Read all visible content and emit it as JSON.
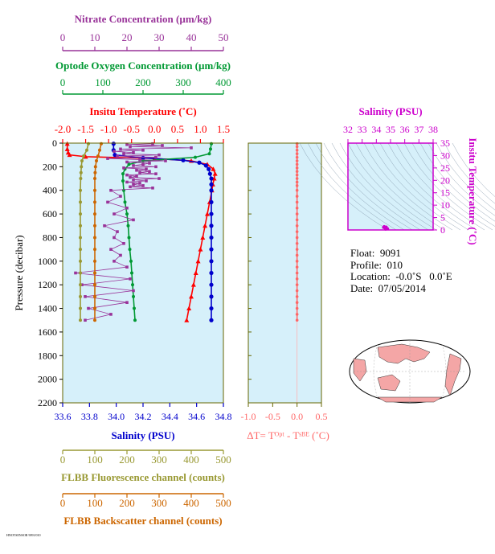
{
  "info": {
    "float": "Float:  9091",
    "profile": "Profile:  010",
    "location": "Location:  -0.0˚S   0.0˚E",
    "date": "Date:  07/05/2014"
  },
  "footer": "HNOTSENSOR 9091/010",
  "colors": {
    "nitrate": "#993399",
    "oxygen": "#009933",
    "temperature": "#ff0000",
    "salinity": "#0000cc",
    "fluorescence": "#999933",
    "backscatter": "#cc6600",
    "deltaT": "#ff6666",
    "panel_bg": "#d6f0fa",
    "ts_axis": "#cc00cc",
    "frame": "#666600"
  },
  "chart_data": [
    {
      "type": "line",
      "title": "",
      "ylabel": "Pressure (decibar)",
      "ylim": [
        2200,
        0
      ],
      "y_ticks": [
        "0",
        "200",
        "400",
        "600",
        "800",
        "1000",
        "1200",
        "1400",
        "1600",
        "1800",
        "2000",
        "2200"
      ],
      "axes": {
        "nitrate": {
          "label": "Nitrate Concentration (µm/kg)",
          "range": [
            0,
            50
          ],
          "ticks": [
            "0",
            "10",
            "20",
            "30",
            "40",
            "50"
          ]
        },
        "oxygen": {
          "label": "Optode Oxygen Concentration (µm/kg)",
          "range": [
            0,
            400
          ],
          "ticks": [
            "0",
            "100",
            "200",
            "300",
            "400"
          ]
        },
        "temperature": {
          "label": "Insitu Temperature (˚C)",
          "range": [
            -2.0,
            1.5
          ],
          "ticks": [
            "-2.0",
            "-1.5",
            "-1.0",
            "-0.5",
            "0.0",
            "0.5",
            "1.0",
            "1.5"
          ]
        },
        "salinity": {
          "label": "Salinity (PSU)",
          "range": [
            33.6,
            34.8
          ],
          "ticks": [
            "33.6",
            "33.8",
            "34.0",
            "34.2",
            "34.4",
            "34.6",
            "34.8"
          ]
        },
        "fluorescence": {
          "label": "FLBB Fluorescence channel (counts)",
          "range": [
            0,
            500
          ],
          "ticks": [
            "0",
            "100",
            "200",
            "300",
            "400",
            "500"
          ]
        },
        "backscatter": {
          "label": "FLBB Backscatter channel (counts)",
          "range": [
            0,
            500
          ],
          "ticks": [
            "0",
            "100",
            "200",
            "300",
            "400",
            "500"
          ]
        }
      },
      "series": [
        {
          "key": "temperature",
          "marker": "triangle",
          "points": [
            [
              -1.9,
              5
            ],
            [
              -1.9,
              50
            ],
            [
              -1.88,
              80
            ],
            [
              -1.85,
              100
            ],
            [
              -1.5,
              115
            ],
            [
              0.0,
              130
            ],
            [
              0.8,
              150
            ],
            [
              1.15,
              180
            ],
            [
              1.28,
              220
            ],
            [
              1.32,
              260
            ],
            [
              1.3,
              300
            ],
            [
              1.27,
              350
            ],
            [
              1.25,
              400
            ],
            [
              1.2,
              500
            ],
            [
              1.15,
              600
            ],
            [
              1.1,
              700
            ],
            [
              1.05,
              800
            ],
            [
              1.0,
              900
            ],
            [
              0.95,
              1000
            ],
            [
              0.9,
              1100
            ],
            [
              0.85,
              1200
            ],
            [
              0.8,
              1300
            ],
            [
              0.75,
              1400
            ],
            [
              0.7,
              1500
            ]
          ]
        },
        {
          "key": "salinity",
          "marker": "circle",
          "points": [
            [
              33.98,
              5
            ],
            [
              33.98,
              60
            ],
            [
              33.99,
              100
            ],
            [
              34.2,
              125
            ],
            [
              34.5,
              145
            ],
            [
              34.62,
              165
            ],
            [
              34.67,
              190
            ],
            [
              34.69,
              220
            ],
            [
              34.7,
              260
            ],
            [
              34.71,
              300
            ],
            [
              34.71,
              350
            ],
            [
              34.71,
              400
            ],
            [
              34.71,
              500
            ],
            [
              34.71,
              600
            ],
            [
              34.71,
              700
            ],
            [
              34.71,
              800
            ],
            [
              34.71,
              900
            ],
            [
              34.71,
              1000
            ],
            [
              34.71,
              1100
            ],
            [
              34.71,
              1200
            ],
            [
              34.71,
              1300
            ],
            [
              34.71,
              1400
            ],
            [
              34.71,
              1500
            ]
          ]
        },
        {
          "key": "oxygen",
          "marker": "circle",
          "points": [
            [
              370,
              5
            ],
            [
              368,
              50
            ],
            [
              365,
              90
            ],
            [
              330,
              120
            ],
            [
              200,
              150
            ],
            [
              165,
              180
            ],
            [
              155,
              220
            ],
            [
              150,
              260
            ],
            [
              150,
              320
            ],
            [
              152,
              400
            ],
            [
              155,
              500
            ],
            [
              160,
              600
            ],
            [
              163,
              700
            ],
            [
              165,
              800
            ],
            [
              167,
              900
            ],
            [
              170,
              1000
            ],
            [
              172,
              1100
            ],
            [
              174,
              1200
            ],
            [
              176,
              1300
            ],
            [
              178,
              1400
            ],
            [
              180,
              1500
            ]
          ]
        },
        {
          "key": "nitrate",
          "marker": "square",
          "points": [
            [
              28,
              5
            ],
            [
              20,
              12
            ],
            [
              31,
              20
            ],
            [
              21,
              30
            ],
            [
              40,
              40
            ],
            [
              18,
              50
            ],
            [
              25,
              60
            ],
            [
              16,
              70
            ],
            [
              22,
              80
            ],
            [
              19,
              90
            ],
            [
              30,
              100
            ],
            [
              17,
              110
            ],
            [
              29,
              120
            ],
            [
              14,
              130
            ],
            [
              24,
              140
            ],
            [
              32,
              150
            ],
            [
              20,
              160
            ],
            [
              27,
              170
            ],
            [
              25,
              180
            ],
            [
              22,
              190
            ],
            [
              29,
              200
            ],
            [
              19,
              210
            ],
            [
              26,
              220
            ],
            [
              23,
              230
            ],
            [
              27,
              240
            ],
            [
              24,
              250
            ],
            [
              29,
              260
            ],
            [
              20,
              270
            ],
            [
              23,
              280
            ],
            [
              21,
              290
            ],
            [
              30,
              300
            ],
            [
              22,
              310
            ],
            [
              26,
              320
            ],
            [
              20,
              330
            ],
            [
              24,
              340
            ],
            [
              22,
              350
            ],
            [
              25,
              360
            ],
            [
              21,
              370
            ],
            [
              28,
              380
            ],
            [
              15,
              400
            ],
            [
              18,
              450
            ],
            [
              14,
              500
            ],
            [
              20,
              550
            ],
            [
              16,
              600
            ],
            [
              22,
              650
            ],
            [
              13,
              700
            ],
            [
              17,
              750
            ],
            [
              16,
              800
            ],
            [
              19,
              850
            ],
            [
              15,
              900
            ],
            [
              18,
              950
            ],
            [
              16,
              1000
            ],
            [
              20,
              1050
            ],
            [
              4,
              1100
            ],
            [
              21,
              1150
            ],
            [
              6,
              1200
            ],
            [
              22,
              1250
            ],
            [
              7,
              1300
            ],
            [
              20,
              1350
            ],
            [
              8,
              1400
            ],
            [
              15,
              1450
            ],
            [
              7,
              1500
            ]
          ]
        },
        {
          "key": "fluorescence",
          "marker": "circle",
          "points": [
            [
              80,
              5
            ],
            [
              75,
              60
            ],
            [
              65,
              110
            ],
            [
              60,
              150
            ],
            [
              58,
              200
            ],
            [
              57,
              250
            ],
            [
              56,
              300
            ],
            [
              55,
              400
            ],
            [
              55,
              500
            ],
            [
              55,
              600
            ],
            [
              55,
              700
            ],
            [
              55,
              800
            ],
            [
              55,
              900
            ],
            [
              55,
              1000
            ],
            [
              55,
              1100
            ],
            [
              55,
              1200
            ],
            [
              55,
              1300
            ],
            [
              55,
              1400
            ],
            [
              55,
              1500
            ]
          ]
        },
        {
          "key": "backscatter",
          "marker": "circle",
          "points": [
            [
              120,
              5
            ],
            [
              115,
              60
            ],
            [
              110,
              110
            ],
            [
              105,
              150
            ],
            [
              102,
              200
            ],
            [
              101,
              250
            ],
            [
              100,
              300
            ],
            [
              100,
              400
            ],
            [
              100,
              500
            ],
            [
              100,
              600
            ],
            [
              100,
              700
            ],
            [
              100,
              800
            ],
            [
              100,
              900
            ],
            [
              100,
              1000
            ],
            [
              100,
              1100
            ],
            [
              100,
              1200
            ],
            [
              100,
              1300
            ],
            [
              100,
              1400
            ],
            [
              100,
              1500
            ]
          ]
        }
      ]
    },
    {
      "type": "scatter",
      "xlabel": "ΔT= Tᴼᵖᵗ - Tˢᴮᴱ (˚C)",
      "xlim": [
        -1.0,
        0.5
      ],
      "x_ticks": [
        "-1.0",
        "-0.5",
        "0.0",
        "0.5"
      ],
      "ylim": [
        2200,
        0
      ],
      "points": [
        [
          0.0,
          5
        ],
        [
          0.0,
          30
        ],
        [
          0.0,
          60
        ],
        [
          0.0,
          90
        ],
        [
          0.0,
          120
        ],
        [
          0.0,
          150
        ],
        [
          0.0,
          180
        ],
        [
          0.0,
          210
        ],
        [
          0.0,
          240
        ],
        [
          0.0,
          270
        ],
        [
          0.0,
          300
        ],
        [
          0.0,
          330
        ],
        [
          0.0,
          360
        ],
        [
          0.0,
          400
        ],
        [
          0.0,
          450
        ],
        [
          0.0,
          500
        ],
        [
          0.0,
          550
        ],
        [
          0.0,
          600
        ],
        [
          0.0,
          650
        ],
        [
          0.0,
          700
        ],
        [
          0.0,
          750
        ],
        [
          0.0,
          800
        ],
        [
          0.0,
          850
        ],
        [
          0.0,
          900
        ],
        [
          0.0,
          950
        ],
        [
          0.0,
          1000
        ],
        [
          0.0,
          1050
        ],
        [
          0.0,
          1100
        ],
        [
          0.0,
          1150
        ],
        [
          0.0,
          1200
        ],
        [
          0.0,
          1250
        ],
        [
          0.0,
          1300
        ],
        [
          0.0,
          1350
        ],
        [
          0.0,
          1400
        ],
        [
          0.0,
          1450
        ],
        [
          0.0,
          1500
        ]
      ]
    },
    {
      "type": "scatter",
      "title": "Salinity (PSU)",
      "xlabel": "Salinity (PSU)",
      "ylabel": "Insitu Temperature (˚C)",
      "xlim": [
        32,
        38
      ],
      "x_ticks": [
        "32",
        "33",
        "34",
        "35",
        "36",
        "37",
        "38"
      ],
      "ylim": [
        0,
        35
      ],
      "y_ticks": [
        "0",
        "5",
        "10",
        "15",
        "20",
        "25",
        "30",
        "35"
      ],
      "points": [
        [
          34.5,
          1.0
        ],
        [
          34.6,
          0.8
        ],
        [
          34.7,
          1.2
        ],
        [
          34.8,
          0.5
        ],
        [
          34.65,
          0.3
        ],
        [
          34.55,
          1.4
        ]
      ]
    }
  ]
}
